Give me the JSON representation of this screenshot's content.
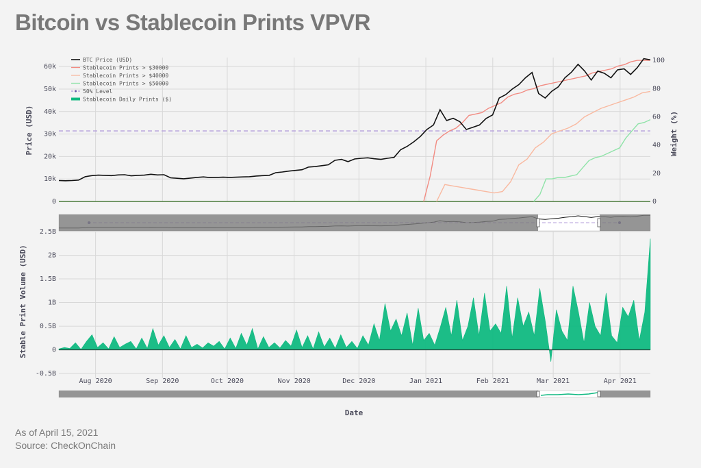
{
  "header": {
    "title": "Bitcoin vs Stablecoin Prints VPVR"
  },
  "footer": {
    "as_of": "As of April 15, 2021",
    "source": "Source: CheckOnChain"
  },
  "chart_data": [
    {
      "type": "line",
      "xlabel": "",
      "ylabel": "Price (USD)",
      "y2label": "Weight (%)",
      "x_ticks": [
        "Aug 2020",
        "Sep 2020",
        "Oct 2020",
        "Nov 2020",
        "Dec 2020",
        "Jan 2021",
        "Feb 2021",
        "Mar 2021",
        "Apr 2021"
      ],
      "y_ticks": [
        "0",
        "10k",
        "20k",
        "30k",
        "40k",
        "50k",
        "60k"
      ],
      "y2_ticks": [
        "0",
        "20",
        "40",
        "60",
        "80",
        "100"
      ],
      "ylim": [
        0,
        64000
      ],
      "y2lim": [
        0,
        102
      ],
      "legend": [
        "BTC Price (USD)",
        "Stablecoin Prints > $30000",
        "Stablecoin Prints > $40000",
        "Stablecoin Prints > $50000",
        "50% Level",
        "Stablecoin Daily Prints ($)"
      ],
      "colors": {
        "btc": "#111111",
        "p30": "#f28b82",
        "p40": "#f9b9a0",
        "p50": "#8fe3a8",
        "level": "#b39ddb",
        "daily": "#10b981"
      },
      "series": [
        {
          "name": "BTC Price (USD)",
          "date_range": [
            "2020-07-15",
            "2021-04-15"
          ],
          "values": [
            9300,
            9200,
            9300,
            9500,
            11000,
            11500,
            11700,
            11600,
            11500,
            11800,
            11900,
            11400,
            11600,
            11700,
            12100,
            11800,
            11900,
            10500,
            10300,
            10100,
            10400,
            10700,
            10900,
            10600,
            10700,
            10800,
            10700,
            10800,
            10900,
            11000,
            11300,
            11500,
            11600,
            12800,
            13100,
            13500,
            13800,
            14100,
            15300,
            15500,
            15900,
            16300,
            18300,
            18700,
            17700,
            18900,
            19200,
            19400,
            19000,
            18700,
            19200,
            19600,
            23000,
            24500,
            26500,
            28900,
            32000,
            34000,
            40800,
            36000,
            37000,
            35500,
            32000,
            33000,
            34000,
            36900,
            38500,
            46000,
            47500,
            50000,
            52000,
            55000,
            57400,
            48000,
            46000,
            49000,
            51000,
            55000,
            57500,
            61000,
            58000,
            54000,
            58000,
            57000,
            55000,
            58500,
            59000,
            56500,
            59500,
            63500,
            63000
          ]
        },
        {
          "name": "Stablecoin Prints > $30000",
          "date_range": [
            "2020-12-31",
            "2021-04-15"
          ],
          "values": [
            0,
            18,
            43,
            47,
            50,
            52,
            56,
            61,
            62,
            63,
            66,
            68,
            70,
            74,
            76,
            77,
            79,
            80,
            82,
            83,
            84,
            85,
            86,
            87,
            88,
            89,
            91,
            92,
            93,
            94,
            96,
            97,
            99,
            100,
            100,
            100
          ]
        },
        {
          "name": "Stablecoin Prints > $40000",
          "date_range": [
            "2021-01-06",
            "2021-04-15"
          ],
          "values": [
            0,
            12,
            11,
            10,
            9,
            8,
            7,
            6,
            7,
            14,
            26,
            30,
            38,
            42,
            48,
            50,
            52,
            55,
            60,
            63,
            66,
            68,
            70,
            72,
            74,
            77,
            78
          ]
        },
        {
          "name": "Stablecoin Prints > $50000",
          "date_range": [
            "2021-02-20",
            "2021-04-15"
          ],
          "values": [
            0,
            5,
            16,
            16,
            17,
            17,
            18,
            19,
            24,
            29,
            31,
            32,
            34,
            36,
            38,
            45,
            50,
            55,
            56,
            58
          ]
        },
        {
          "name": "50% Level",
          "value": 50
        }
      ]
    },
    {
      "type": "area",
      "xlabel": "Date",
      "ylabel": "Stable Print Volume (USD)",
      "x_ticks": [
        "Aug 2020",
        "Sep 2020",
        "Oct 2020",
        "Nov 2020",
        "Dec 2020",
        "Jan 2021",
        "Feb 2021",
        "Mar 2021",
        "Apr 2021"
      ],
      "y_ticks": [
        "-0.5B",
        "0",
        "0.5B",
        "1B",
        "1.5B",
        "2B",
        "2.5B"
      ],
      "ylim": [
        -0.6,
        2.5
      ],
      "series": [
        {
          "name": "Stablecoin Daily Prints ($)",
          "date_range": [
            "2020-07-15",
            "2021-04-15"
          ],
          "values": [
            0.02,
            0.05,
            0.03,
            0.15,
            0.01,
            0.18,
            0.32,
            0.05,
            0.15,
            0.02,
            0.28,
            0.05,
            0.12,
            0.18,
            0.02,
            0.25,
            0.03,
            0.45,
            0.1,
            0.3,
            0.05,
            0.22,
            0.02,
            0.3,
            0.05,
            0.12,
            0.04,
            0.15,
            0.08,
            0.18,
            0.02,
            0.25,
            0.03,
            0.35,
            0.1,
            0.45,
            0.02,
            0.28,
            0.05,
            0.15,
            0.04,
            0.2,
            0.08,
            0.42,
            0.05,
            0.3,
            0.02,
            0.38,
            0.06,
            0.25,
            0.03,
            0.32,
            0.05,
            0.18,
            0.03,
            0.3,
            0.1,
            0.55,
            0.2,
            0.98,
            0.4,
            0.65,
            0.3,
            0.78,
            0.1,
            0.88,
            0.2,
            0.35,
            0.1,
            0.48,
            0.9,
            0.3,
            1.05,
            0.2,
            0.5,
            1.1,
            0.3,
            1.2,
            0.4,
            0.55,
            0.35,
            1.35,
            0.25,
            1.1,
            0.5,
            0.8,
            0.3,
            1.3,
            0.6,
            -0.25,
            0.85,
            0.4,
            0.2,
            1.35,
            0.8,
            0.15,
            1.0,
            0.5,
            0.3,
            1.2,
            0.3,
            0.15,
            0.9,
            0.7,
            1.05,
            0.2,
            0.8,
            2.35
          ]
        }
      ]
    }
  ]
}
